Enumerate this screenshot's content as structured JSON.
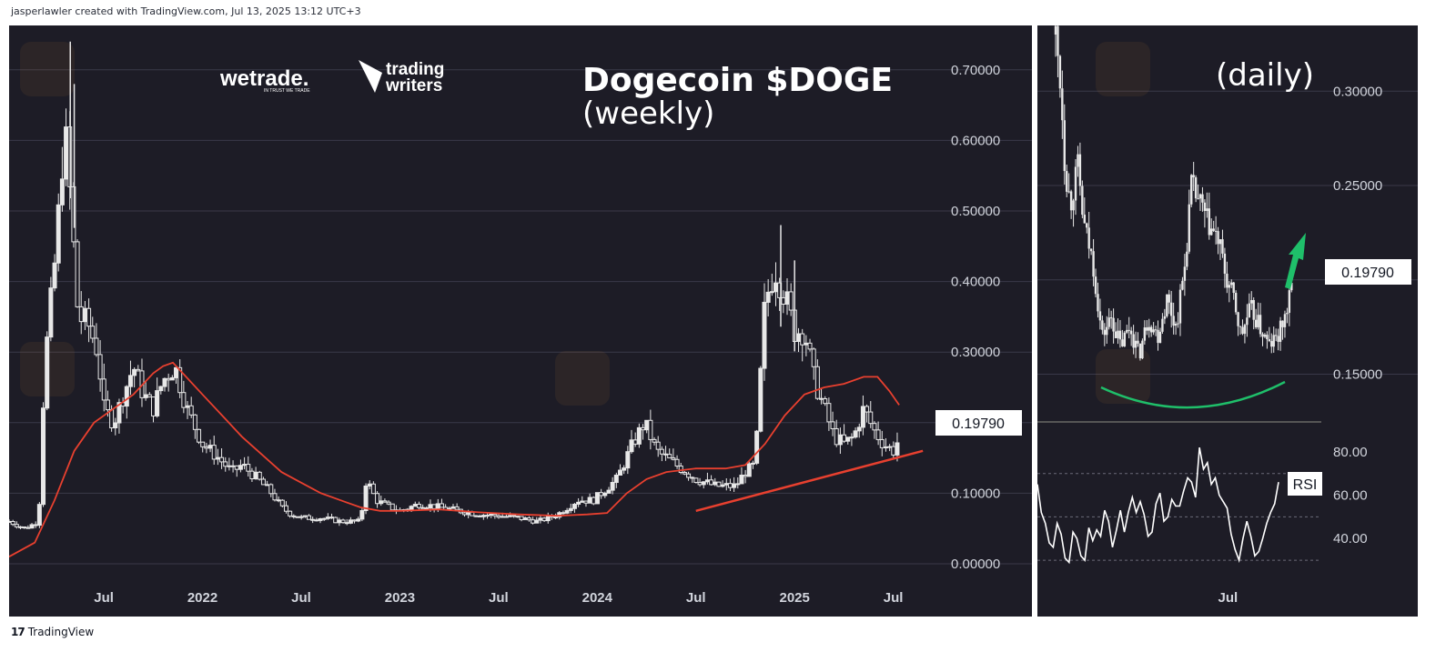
{
  "header": {
    "credit": "jasperlawler created with TradingView.com, Jul 13, 2025 13:12 UTC+3"
  },
  "footer": {
    "brand": "TradingView",
    "logo": "17"
  },
  "branding": {
    "wetrade": "wetrade.",
    "wetrade_sub": "IN TRUST WE TRADE",
    "trading_writers_1": "trading",
    "trading_writers_2": "writers"
  },
  "colors": {
    "background": "#1d1c26",
    "candle": "#e8e8e8",
    "ma": "#e8402f",
    "trendline": "#e8402f",
    "arc": "#1fbf6a",
    "arrow": "#1fbf6a",
    "rsi": "#ffffff"
  },
  "chart_data": [
    {
      "type": "candlestick",
      "title": "Dogecoin $DOGE",
      "subtitle": "(weekly)",
      "last_price_label": "0.19790",
      "ylim": [
        0,
        0.75
      ],
      "yticks": [
        "0.70000",
        "0.60000",
        "0.50000",
        "0.40000",
        "0.30000",
        "0.10000",
        "0.00000"
      ],
      "ytick_values": [
        0.7,
        0.6,
        0.5,
        0.4,
        0.3,
        0.1,
        0.0
      ],
      "xticks": [
        "Jul",
        "2022",
        "Jul",
        "2023",
        "Jul",
        "2024",
        "Jul",
        "2025",
        "Jul"
      ],
      "xtick_times": [
        2021.5,
        2022.0,
        2022.5,
        2023.0,
        2023.5,
        2024.0,
        2024.5,
        2025.0,
        2025.5
      ],
      "xlim": [
        2021.02,
        2025.7
      ],
      "price_path": [
        [
          2021.02,
          0.06
        ],
        [
          2021.1,
          0.05
        ],
        [
          2021.17,
          0.06
        ],
        [
          2021.2,
          0.28
        ],
        [
          2021.26,
          0.45
        ],
        [
          2021.3,
          0.62
        ],
        [
          2021.33,
          0.52
        ],
        [
          2021.37,
          0.35
        ],
        [
          2021.42,
          0.34
        ],
        [
          2021.47,
          0.3
        ],
        [
          2021.5,
          0.22
        ],
        [
          2021.55,
          0.2
        ],
        [
          2021.6,
          0.24
        ],
        [
          2021.65,
          0.28
        ],
        [
          2021.7,
          0.24
        ],
        [
          2021.75,
          0.22
        ],
        [
          2021.8,
          0.26
        ],
        [
          2021.86,
          0.28
        ],
        [
          2021.92,
          0.22
        ],
        [
          2022.0,
          0.17
        ],
        [
          2022.08,
          0.15
        ],
        [
          2022.15,
          0.13
        ],
        [
          2022.2,
          0.14
        ],
        [
          2022.28,
          0.12
        ],
        [
          2022.35,
          0.1
        ],
        [
          2022.4,
          0.08
        ],
        [
          2022.45,
          0.07
        ],
        [
          2022.5,
          0.065
        ],
        [
          2022.6,
          0.065
        ],
        [
          2022.7,
          0.06
        ],
        [
          2022.8,
          0.06
        ],
        [
          2022.83,
          0.12
        ],
        [
          2022.88,
          0.09
        ],
        [
          2022.95,
          0.08
        ],
        [
          2023.0,
          0.075
        ],
        [
          2023.1,
          0.085
        ],
        [
          2023.2,
          0.08
        ],
        [
          2023.3,
          0.075
        ],
        [
          2023.4,
          0.07
        ],
        [
          2023.5,
          0.068
        ],
        [
          2023.6,
          0.065
        ],
        [
          2023.7,
          0.06
        ],
        [
          2023.8,
          0.07
        ],
        [
          2023.9,
          0.09
        ],
        [
          2023.98,
          0.09
        ],
        [
          2024.1,
          0.12
        ],
        [
          2024.18,
          0.17
        ],
        [
          2024.24,
          0.2
        ],
        [
          2024.3,
          0.16
        ],
        [
          2024.4,
          0.14
        ],
        [
          2024.5,
          0.12
        ],
        [
          2024.6,
          0.11
        ],
        [
          2024.7,
          0.11
        ],
        [
          2024.75,
          0.13
        ],
        [
          2024.8,
          0.14
        ],
        [
          2024.85,
          0.37
        ],
        [
          2024.9,
          0.42
        ],
        [
          2024.95,
          0.38
        ],
        [
          2025.0,
          0.33
        ],
        [
          2025.05,
          0.33
        ],
        [
          2025.1,
          0.26
        ],
        [
          2025.15,
          0.22
        ],
        [
          2025.2,
          0.18
        ],
        [
          2025.25,
          0.17
        ],
        [
          2025.3,
          0.18
        ],
        [
          2025.35,
          0.22
        ],
        [
          2025.4,
          0.19
        ],
        [
          2025.45,
          0.17
        ],
        [
          2025.5,
          0.16
        ],
        [
          2025.53,
          0.178
        ]
      ],
      "ma_path": [
        [
          2021.02,
          0.01
        ],
        [
          2021.15,
          0.03
        ],
        [
          2021.25,
          0.09
        ],
        [
          2021.35,
          0.16
        ],
        [
          2021.45,
          0.2
        ],
        [
          2021.55,
          0.22
        ],
        [
          2021.65,
          0.24
        ],
        [
          2021.75,
          0.27
        ],
        [
          2021.8,
          0.28
        ],
        [
          2021.85,
          0.285
        ],
        [
          2021.9,
          0.27
        ],
        [
          2022.0,
          0.24
        ],
        [
          2022.1,
          0.21
        ],
        [
          2022.2,
          0.18
        ],
        [
          2022.3,
          0.155
        ],
        [
          2022.4,
          0.13
        ],
        [
          2022.5,
          0.115
        ],
        [
          2022.6,
          0.1
        ],
        [
          2022.7,
          0.09
        ],
        [
          2022.8,
          0.08
        ],
        [
          2022.9,
          0.075
        ],
        [
          2023.0,
          0.075
        ],
        [
          2023.2,
          0.077
        ],
        [
          2023.4,
          0.073
        ],
        [
          2023.6,
          0.07
        ],
        [
          2023.8,
          0.068
        ],
        [
          2023.95,
          0.07
        ],
        [
          2024.05,
          0.072
        ],
        [
          2024.15,
          0.1
        ],
        [
          2024.25,
          0.12
        ],
        [
          2024.35,
          0.13
        ],
        [
          2024.5,
          0.135
        ],
        [
          2024.65,
          0.135
        ],
        [
          2024.75,
          0.14
        ],
        [
          2024.85,
          0.17
        ],
        [
          2024.95,
          0.21
        ],
        [
          2025.05,
          0.24
        ],
        [
          2025.15,
          0.25
        ],
        [
          2025.25,
          0.255
        ],
        [
          2025.35,
          0.265
        ],
        [
          2025.42,
          0.265
        ],
        [
          2025.48,
          0.245
        ],
        [
          2025.53,
          0.225
        ]
      ],
      "trendline": [
        [
          2024.5,
          0.075
        ],
        [
          2025.65,
          0.16
        ]
      ]
    },
    {
      "type": "candlestick",
      "title": "(daily)",
      "last_price_label": "0.19790",
      "ylim": [
        0.13,
        0.33
      ],
      "yticks": [
        "0.30000",
        "0.25000",
        "0.15000"
      ],
      "ytick_values": [
        0.3,
        0.25,
        0.15
      ],
      "xticks": [
        "Jul"
      ],
      "xtick_times": [
        0.88
      ],
      "price_path": [
        [
          0.0,
          0.33
        ],
        [
          0.03,
          0.3
        ],
        [
          0.05,
          0.26
        ],
        [
          0.08,
          0.24
        ],
        [
          0.12,
          0.26
        ],
        [
          0.15,
          0.23
        ],
        [
          0.2,
          0.21
        ],
        [
          0.25,
          0.17
        ],
        [
          0.3,
          0.18
        ],
        [
          0.35,
          0.165
        ],
        [
          0.4,
          0.175
        ],
        [
          0.45,
          0.16
        ],
        [
          0.5,
          0.18
        ],
        [
          0.55,
          0.17
        ],
        [
          0.6,
          0.19
        ],
        [
          0.65,
          0.175
        ],
        [
          0.7,
          0.21
        ],
        [
          0.73,
          0.25
        ],
        [
          0.78,
          0.24
        ],
        [
          0.82,
          0.23
        ],
        [
          0.88,
          0.22
        ],
        [
          0.92,
          0.2
        ],
        [
          0.96,
          0.19
        ],
        [
          1.0,
          0.17
        ],
        [
          1.05,
          0.185
        ],
        [
          1.1,
          0.175
        ],
        [
          1.15,
          0.165
        ],
        [
          1.2,
          0.17
        ],
        [
          1.25,
          0.185
        ],
        [
          1.28,
          0.2
        ]
      ],
      "arc_annotation": true,
      "arrow_annotation": true
    },
    {
      "type": "line",
      "indicator": "RSI",
      "label": "RSI",
      "ylim": [
        25,
        90
      ],
      "yticks": [
        "80.00",
        "60.00",
        "40.00"
      ],
      "ytick_values": [
        80,
        60,
        40
      ],
      "dashed_levels": [
        70,
        50,
        30
      ],
      "values": [
        65,
        52,
        47,
        38,
        36,
        47,
        42,
        31,
        29,
        43,
        40,
        32,
        30,
        45,
        39,
        44,
        41,
        53,
        48,
        36,
        44,
        53,
        43,
        52,
        59,
        52,
        57,
        51,
        41,
        43,
        56,
        61,
        48,
        50,
        58,
        55,
        55,
        62,
        68,
        66,
        59,
        82,
        72,
        75,
        65,
        68,
        60,
        57,
        54,
        42,
        35,
        30,
        40,
        48,
        41,
        32,
        34,
        40,
        47,
        52,
        56,
        66
      ]
    }
  ]
}
